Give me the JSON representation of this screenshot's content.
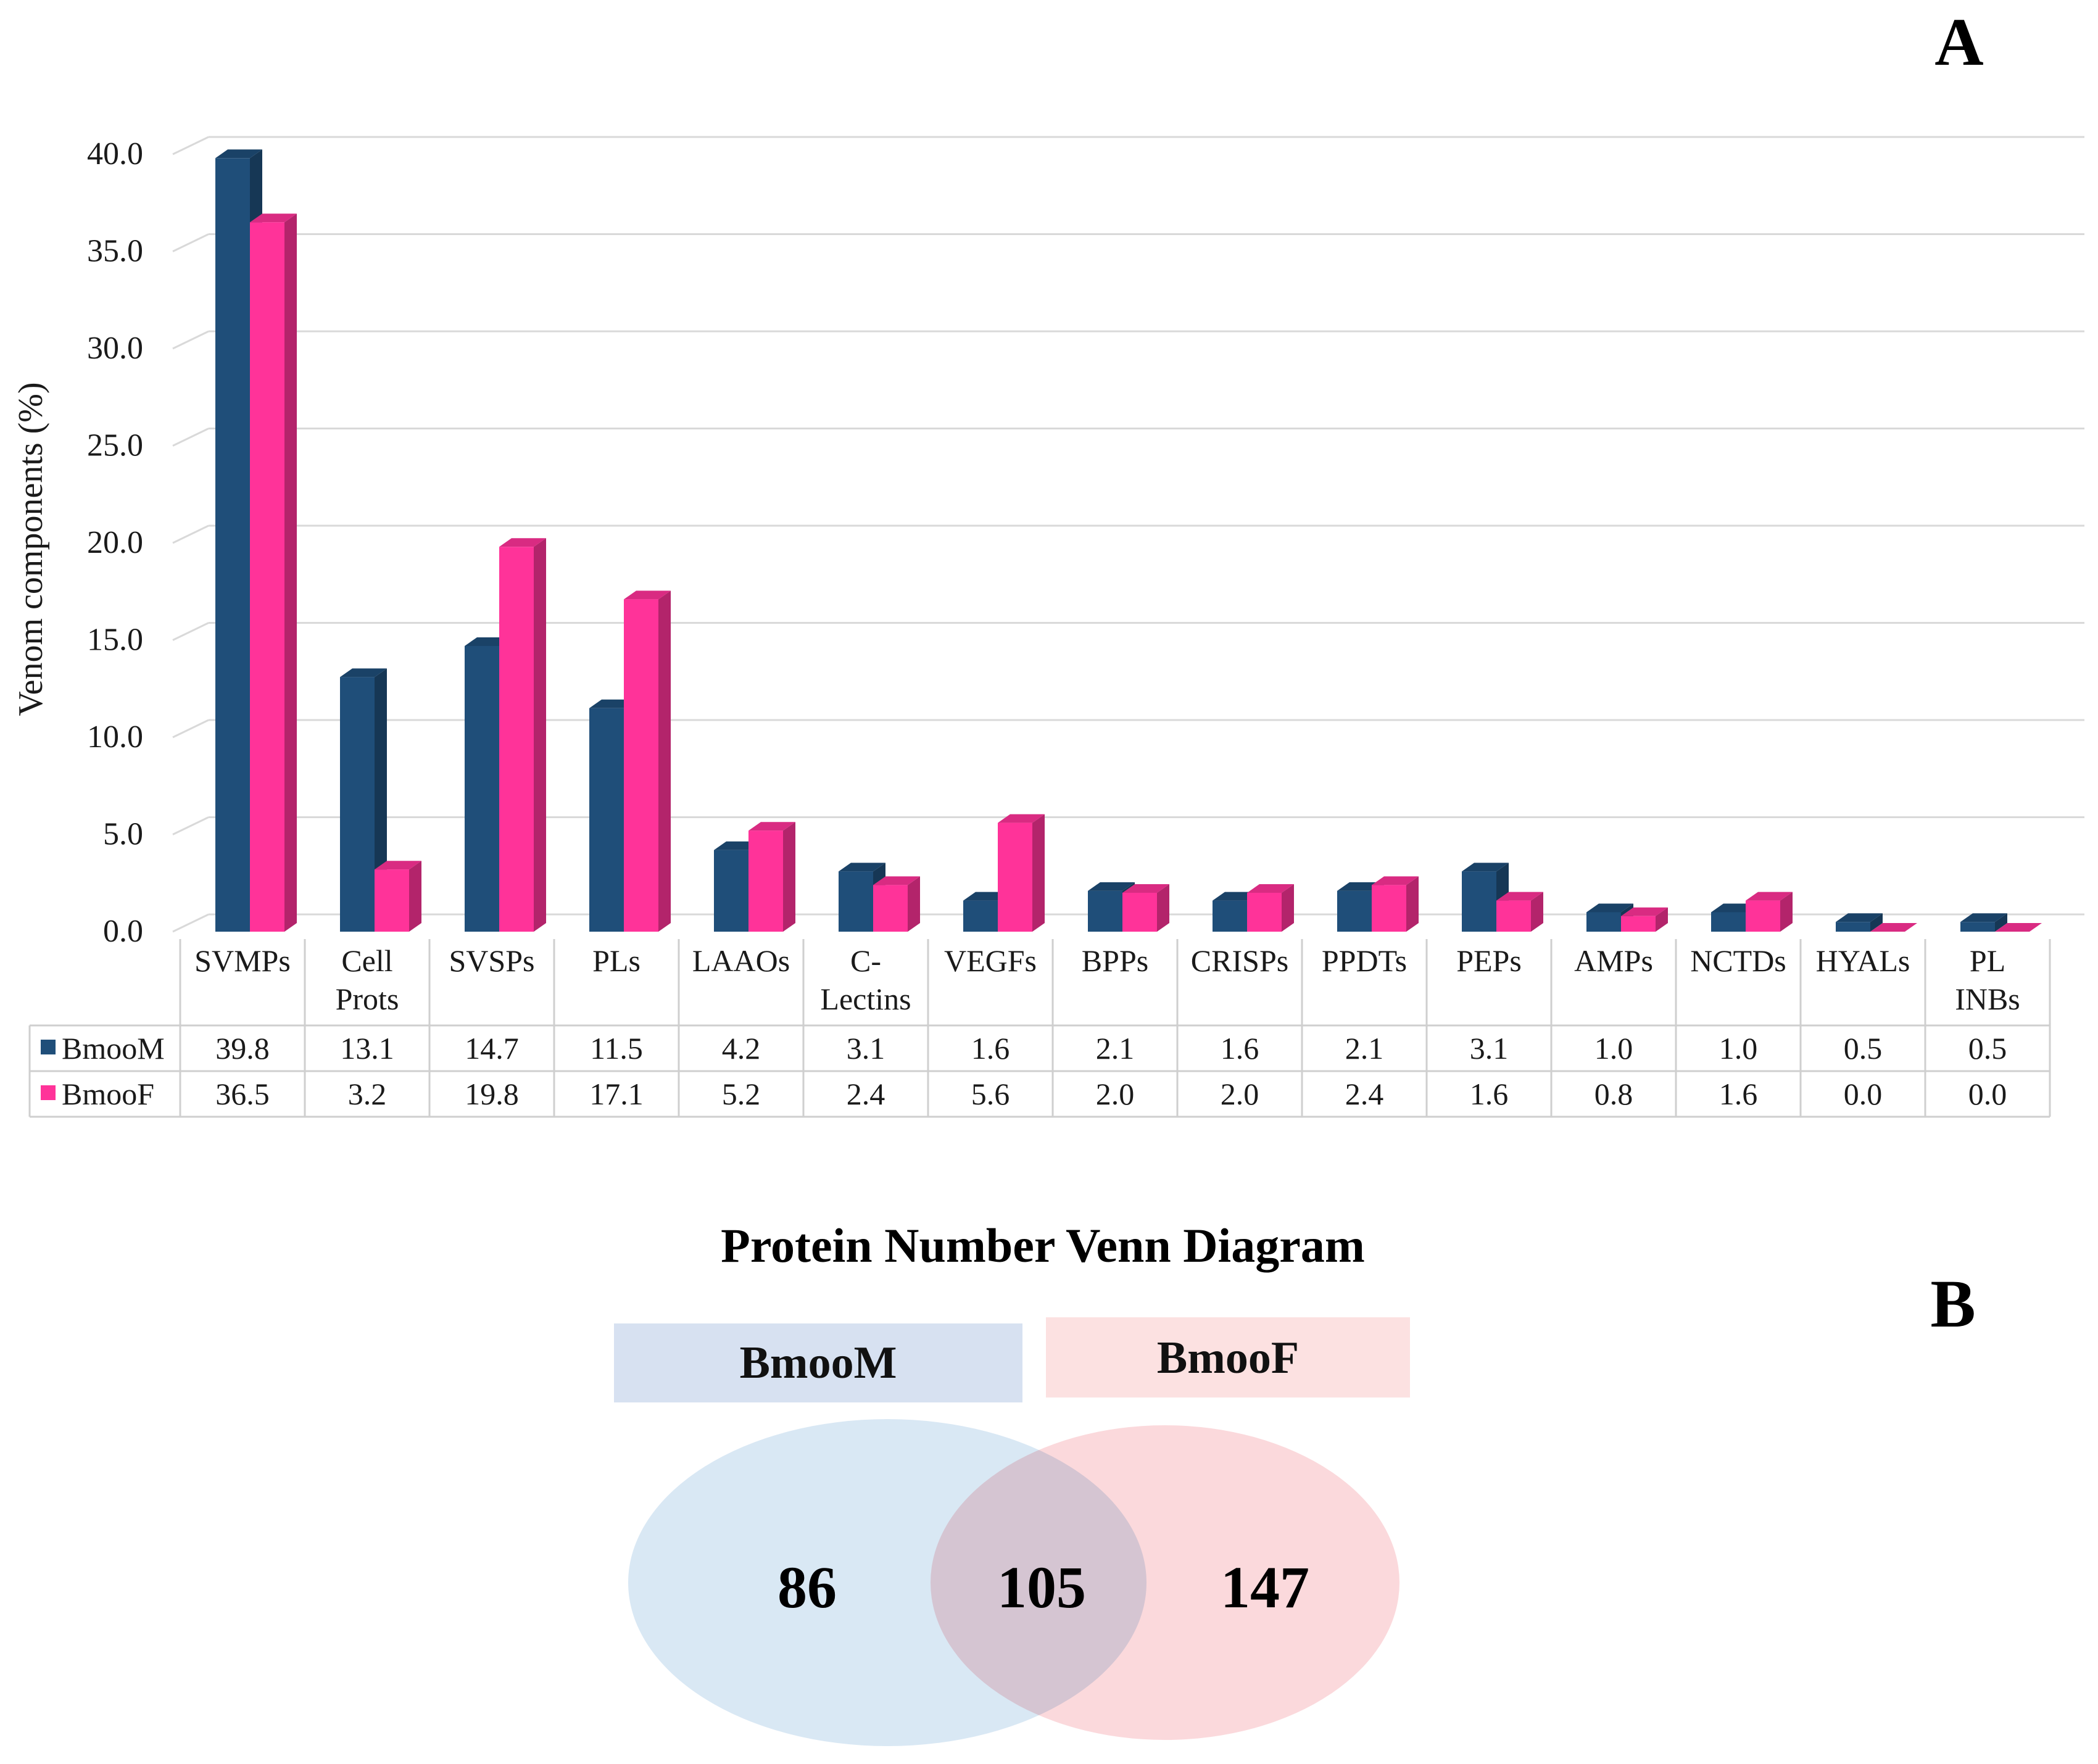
{
  "panel_a_label": "A",
  "panel_b_label": "B",
  "chart_data": {
    "type": "bar",
    "ylabel": "Venom components (%)",
    "ylim": [
      0,
      40
    ],
    "yticks": [
      "0.0",
      "5.0",
      "10.0",
      "15.0",
      "20.0",
      "25.0",
      "30.0",
      "35.0",
      "40.0"
    ],
    "grid": true,
    "legend": "data-table",
    "categories": [
      [
        "SVMPs"
      ],
      [
        "Cell",
        "Prots"
      ],
      [
        "SVSPs"
      ],
      [
        "PLs"
      ],
      [
        "LAAOs"
      ],
      [
        "C-",
        "Lectins"
      ],
      [
        "VEGFs"
      ],
      [
        "BPPs"
      ],
      [
        "CRISPs"
      ],
      [
        "PPDTs"
      ],
      [
        "PEPs"
      ],
      [
        "AMPs"
      ],
      [
        "NCTDs"
      ],
      [
        "HYALs"
      ],
      [
        "PL",
        "INBs"
      ]
    ],
    "series": [
      {
        "name": "BmooM",
        "color": "#1f4e79",
        "values": [
          39.8,
          13.1,
          14.7,
          11.5,
          4.2,
          3.1,
          1.6,
          2.1,
          1.6,
          2.1,
          3.1,
          1.0,
          1.0,
          0.5,
          0.5
        ],
        "labels": [
          "39.8",
          "13.1",
          "14.7",
          "11.5",
          "4.2",
          "3.1",
          "1.6",
          "2.1",
          "1.6",
          "2.1",
          "3.1",
          "1.0",
          "1.0",
          "0.5",
          "0.5"
        ]
      },
      {
        "name": "BmooF",
        "color": "#ff3399",
        "values": [
          36.5,
          3.2,
          19.8,
          17.1,
          5.2,
          2.4,
          5.6,
          2.0,
          2.0,
          2.4,
          1.6,
          0.8,
          1.6,
          0.0,
          0.0
        ],
        "labels": [
          "36.5",
          "3.2",
          "19.8",
          "17.1",
          "5.2",
          "2.4",
          "5.6",
          "2.0",
          "2.0",
          "2.4",
          "1.6",
          "0.8",
          "1.6",
          "0.0",
          "0.0"
        ]
      }
    ]
  },
  "venn": {
    "title": "Protein Number Venn Diagram",
    "left_label": "BmooM",
    "right_label": "BmooF",
    "left_only": "86",
    "both": "105",
    "right_only": "147",
    "left_color": "#d5e5f3",
    "right_color": "#fbd5d8"
  }
}
